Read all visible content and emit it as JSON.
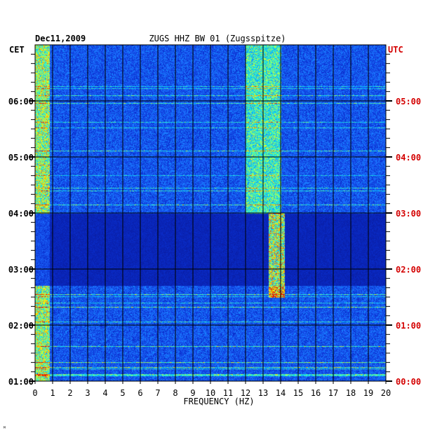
{
  "header": {
    "date": "Dec11,2009",
    "station": "ZUGS HHZ BW 01 (Zugsspitze)",
    "left_zone": "CET",
    "right_zone": "UTC"
  },
  "footer_mark": "ᴹ",
  "colors": {
    "background_blue": "#0a1fb8",
    "grid": "#000000",
    "utc_labels": "#d40000",
    "cet_labels": "#000000"
  },
  "chart_data": {
    "type": "heatmap",
    "xlabel": "FREQUENCY (HZ)",
    "xlim": [
      0,
      20
    ],
    "x_ticks": [
      "0",
      "1",
      "2",
      "3",
      "4",
      "5",
      "6",
      "7",
      "8",
      "9",
      "10",
      "11",
      "12",
      "13",
      "14",
      "15",
      "16",
      "17",
      "18",
      "19",
      "20"
    ],
    "y_ticks_cet": [
      "06:00",
      "05:00",
      "04:00",
      "03:00",
      "02:00",
      "01:00"
    ],
    "y_ticks_utc": [
      "05:00",
      "04:00",
      "03:00",
      "02:00",
      "01:00",
      "00:00"
    ],
    "y_tick_hours_cet": [
      6,
      5,
      4,
      3,
      2,
      1
    ],
    "ylim_cet_hours": [
      1,
      7
    ],
    "colormap": [
      "#08158f",
      "#0a2fd0",
      "#1e6cff",
      "#00c8ff",
      "#4cffb0",
      "#ffff00",
      "#ff8000",
      "#e00000"
    ],
    "features": [
      {
        "desc": "persistent low-frequency energy",
        "freq_range": [
          0,
          0.8
        ],
        "level": 0.6
      },
      {
        "desc": "broadband ~13.8 Hz band",
        "freq_range": [
          13.3,
          14.2
        ],
        "time_range_cet": [
          2.5,
          4.0
        ],
        "level": 0.85
      },
      {
        "desc": "12-14 Hz activity",
        "freq_range": [
          12,
          14
        ],
        "time_range_cet": [
          4.0,
          7.0
        ],
        "level": 0.45
      }
    ],
    "quiet_band_cet": [
      2.7,
      4.0
    ]
  }
}
